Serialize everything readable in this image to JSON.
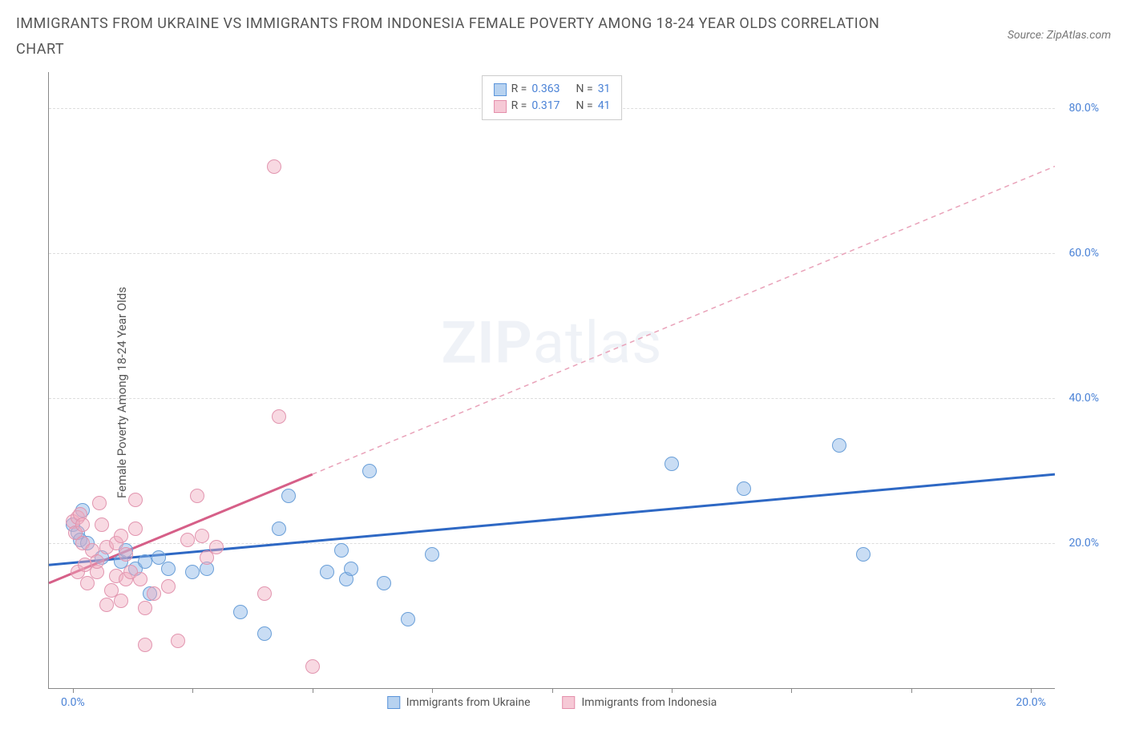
{
  "title": "IMMIGRANTS FROM UKRAINE VS IMMIGRANTS FROM INDONESIA FEMALE POVERTY AMONG 18-24 YEAR OLDS CORRELATION CHART",
  "source": "Source: ZipAtlas.com",
  "ylabel": "Female Poverty Among 18-24 Year Olds",
  "watermark": {
    "bold": "ZIP",
    "rest": "atlas"
  },
  "legend_top": [
    {
      "swatch_fill": "#b7d2f0",
      "swatch_border": "#5a94da",
      "r_label": "R =",
      "r": "0.363",
      "n_label": "N =",
      "n": "31"
    },
    {
      "swatch_fill": "#f6c9d6",
      "swatch_border": "#e48fab",
      "r_label": "R =",
      "r": "0.317",
      "n_label": "N =",
      "n": "41"
    }
  ],
  "legend_bottom": [
    {
      "swatch_fill": "#b7d2f0",
      "swatch_border": "#5a94da",
      "label": "Immigrants from Ukraine"
    },
    {
      "swatch_fill": "#f6c9d6",
      "swatch_border": "#e48fab",
      "label": "Immigrants from Indonesia"
    }
  ],
  "chart": {
    "x_min": -0.5,
    "x_max": 20.5,
    "y_min": 0,
    "y_max": 85,
    "y_ticks": [
      20,
      40,
      60,
      80
    ],
    "y_tick_labels": [
      "20.0%",
      "40.0%",
      "60.0%",
      "80.0%"
    ],
    "x_ticks": [
      0,
      2.5,
      5,
      7.5,
      10,
      12.5,
      15,
      17.5,
      20
    ],
    "x_tick_labels": {
      "0": "0.0%",
      "20": "20.0%"
    },
    "series": [
      {
        "name": "ukraine",
        "fill": "rgba(135, 180, 230, 0.45)",
        "stroke": "#6a9fd8",
        "marker_size": 18,
        "points": [
          [
            0.0,
            22.5
          ],
          [
            0.1,
            21.5
          ],
          [
            0.15,
            20.5
          ],
          [
            0.2,
            24.5
          ],
          [
            0.3,
            20.0
          ],
          [
            0.6,
            18.0
          ],
          [
            1.0,
            17.5
          ],
          [
            1.1,
            19.0
          ],
          [
            1.3,
            16.5
          ],
          [
            1.5,
            17.5
          ],
          [
            1.6,
            13.0
          ],
          [
            1.8,
            18.0
          ],
          [
            2.0,
            16.5
          ],
          [
            2.5,
            16.0
          ],
          [
            2.8,
            16.5
          ],
          [
            3.5,
            10.5
          ],
          [
            4.0,
            7.5
          ],
          [
            4.3,
            22.0
          ],
          [
            4.5,
            26.5
          ],
          [
            5.3,
            16.0
          ],
          [
            5.6,
            19.0
          ],
          [
            5.7,
            15.0
          ],
          [
            5.8,
            16.5
          ],
          [
            6.2,
            30.0
          ],
          [
            6.5,
            14.5
          ],
          [
            7.0,
            9.5
          ],
          [
            7.5,
            18.5
          ],
          [
            12.5,
            31.0
          ],
          [
            14.0,
            27.5
          ],
          [
            16.0,
            33.5
          ],
          [
            16.5,
            18.5
          ]
        ],
        "trend": {
          "x1": -0.5,
          "y1": 17.0,
          "x2": 20.5,
          "y2": 29.5,
          "color": "#2e68c4",
          "width": 3,
          "dash": "none"
        },
        "trend_ext": null
      },
      {
        "name": "indonesia",
        "fill": "rgba(240, 170, 190, 0.45)",
        "stroke": "#e295af",
        "marker_size": 18,
        "points": [
          [
            0.0,
            23.0
          ],
          [
            0.05,
            21.5
          ],
          [
            0.1,
            23.5
          ],
          [
            0.1,
            16.0
          ],
          [
            0.15,
            24.0
          ],
          [
            0.2,
            20.0
          ],
          [
            0.2,
            22.5
          ],
          [
            0.25,
            17.0
          ],
          [
            0.3,
            14.5
          ],
          [
            0.4,
            19.0
          ],
          [
            0.5,
            16.0
          ],
          [
            0.5,
            17.5
          ],
          [
            0.55,
            25.5
          ],
          [
            0.6,
            22.5
          ],
          [
            0.7,
            19.5
          ],
          [
            0.7,
            11.5
          ],
          [
            0.8,
            13.5
          ],
          [
            0.9,
            15.5
          ],
          [
            0.9,
            20.0
          ],
          [
            1.0,
            21.0
          ],
          [
            1.0,
            12.0
          ],
          [
            1.1,
            15.0
          ],
          [
            1.1,
            18.5
          ],
          [
            1.2,
            16.0
          ],
          [
            1.3,
            22.0
          ],
          [
            1.3,
            26.0
          ],
          [
            1.4,
            15.0
          ],
          [
            1.5,
            11.0
          ],
          [
            1.5,
            6.0
          ],
          [
            1.7,
            13.0
          ],
          [
            2.0,
            14.0
          ],
          [
            2.2,
            6.5
          ],
          [
            2.4,
            20.5
          ],
          [
            2.6,
            26.5
          ],
          [
            2.7,
            21.0
          ],
          [
            2.8,
            18.0
          ],
          [
            3.0,
            19.5
          ],
          [
            4.0,
            13.0
          ],
          [
            4.2,
            72.0
          ],
          [
            4.3,
            37.5
          ],
          [
            5.0,
            3.0
          ]
        ],
        "trend": {
          "x1": -0.5,
          "y1": 14.5,
          "x2": 5.0,
          "y2": 29.5,
          "color": "#d65f88",
          "width": 3,
          "dash": "none"
        },
        "trend_ext": {
          "x1": 5.0,
          "y1": 29.5,
          "x2": 20.5,
          "y2": 72.0,
          "color": "#e9a2b9",
          "width": 1.5,
          "dash": "6,5"
        }
      }
    ]
  }
}
